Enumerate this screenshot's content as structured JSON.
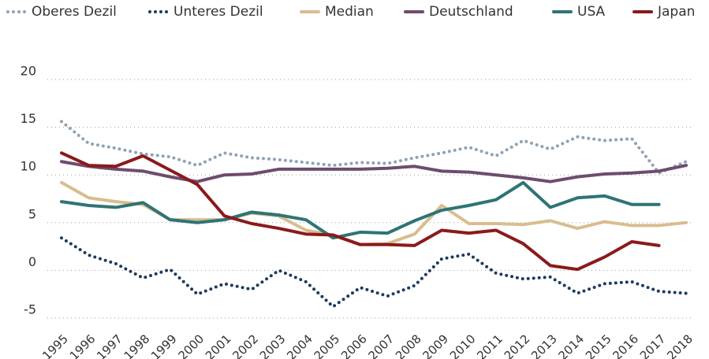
{
  "chart_data": {
    "type": "line",
    "categories": [
      "1995",
      "1996",
      "1997",
      "1998",
      "1999",
      "2000",
      "2001",
      "2002",
      "2003",
      "2004",
      "2005",
      "2006",
      "2007",
      "2008",
      "2009",
      "2010",
      "2011",
      "2012",
      "2013",
      "2014",
      "2015",
      "2016",
      "2017",
      "2018"
    ],
    "ylim": [
      -5,
      20
    ],
    "yticks": [
      -5,
      0,
      5,
      10,
      15,
      20
    ],
    "grid": true,
    "legend": "top",
    "series": [
      {
        "name": "Oberes Dezil",
        "color": "#8fa1b5",
        "style": "dotted",
        "values": [
          15.6,
          13.3,
          12.8,
          12.2,
          11.9,
          11.0,
          12.3,
          11.8,
          11.6,
          11.3,
          11.0,
          11.3,
          11.2,
          11.8,
          12.3,
          12.9,
          12.0,
          13.6,
          12.7,
          14.0,
          13.6,
          13.8,
          10.2,
          11.4
        ]
      },
      {
        "name": "Unteres Dezil",
        "color": "#1d3a5c",
        "style": "dotted",
        "values": [
          3.4,
          1.6,
          0.7,
          -0.8,
          0.1,
          -2.5,
          -1.4,
          -2.0,
          0.0,
          -1.2,
          -3.8,
          -1.8,
          -2.7,
          -1.6,
          1.2,
          1.7,
          -0.3,
          -0.9,
          -0.7,
          -2.4,
          -1.4,
          -1.2,
          -2.2,
          -2.4
        ]
      },
      {
        "name": "Median",
        "color": "#d9bd8f",
        "style": "solid",
        "values": [
          9.2,
          7.6,
          7.2,
          6.9,
          5.3,
          5.3,
          5.3,
          6.0,
          5.7,
          4.2,
          3.7,
          2.7,
          2.8,
          3.8,
          6.8,
          4.9,
          4.9,
          4.8,
          5.2,
          4.4,
          5.1,
          4.7,
          4.7,
          5.0
        ]
      },
      {
        "name": "Deutschland",
        "color": "#6e4c6e",
        "style": "solid",
        "values": [
          11.4,
          10.9,
          10.6,
          10.4,
          9.8,
          9.3,
          10.0,
          10.1,
          10.6,
          10.6,
          10.6,
          10.6,
          10.7,
          10.9,
          10.4,
          10.3,
          10.0,
          9.7,
          9.3,
          9.8,
          10.1,
          10.2,
          10.4,
          11.0
        ]
      },
      {
        "name": "USA",
        "color": "#2e7475",
        "style": "solid",
        "values": [
          7.2,
          6.8,
          6.6,
          7.1,
          5.3,
          5.0,
          5.3,
          6.1,
          5.8,
          5.3,
          3.4,
          4.0,
          3.9,
          5.2,
          6.3,
          6.8,
          7.4,
          9.2,
          6.6,
          7.6,
          7.8,
          6.9,
          6.9,
          null
        ]
      },
      {
        "name": "Japan",
        "color": "#8b1a1a",
        "style": "solid",
        "values": [
          12.3,
          11.0,
          10.9,
          12.0,
          10.5,
          9.0,
          5.7,
          4.9,
          4.4,
          3.8,
          3.7,
          2.7,
          2.7,
          2.6,
          4.2,
          3.9,
          4.2,
          2.8,
          0.5,
          0.1,
          1.4,
          3.0,
          2.6,
          null
        ]
      }
    ]
  }
}
